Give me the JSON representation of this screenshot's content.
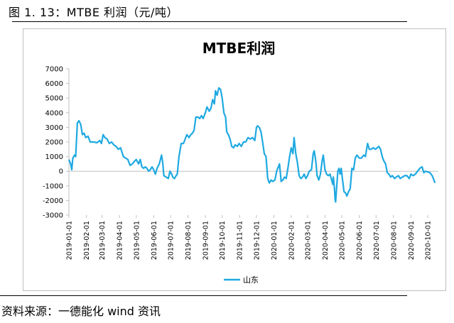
{
  "caption": "图 1. 13：MTBE 利润（元/吨）",
  "source": "资料来源：一德能化 wind 资讯",
  "chart_data": {
    "type": "line",
    "title": "MTBE利润",
    "xlabel": "",
    "ylabel": "",
    "ylim": [
      -3000,
      7000
    ],
    "yticks": [
      -3000,
      -2000,
      -1000,
      0,
      1000,
      2000,
      3000,
      4000,
      5000,
      6000,
      7000
    ],
    "xlim": [
      "2019-01-01",
      "2020-10-20"
    ],
    "xtick_labels": [
      "2019-01-01",
      "2019-02-01",
      "2019-03-01",
      "2019-04-01",
      "2019-05-01",
      "2019-06-01",
      "2019-07-01",
      "2019-08-01",
      "2019-09-01",
      "2019-10-01",
      "2019-11-01",
      "2019-12-01",
      "2020-01-01",
      "2020-02-01",
      "2020-03-01",
      "2020-04-01",
      "2020-05-01",
      "2020-06-01",
      "2020-07-01",
      "2020-08-01",
      "2020-09-01",
      "2020-10-01"
    ],
    "grid": false,
    "legend_position": "bottom",
    "color": "#1fa9e1",
    "series": [
      {
        "name": "山东",
        "points": [
          [
            "2019-01-01",
            800
          ],
          [
            "2019-01-04",
            500
          ],
          [
            "2019-01-06",
            100
          ],
          [
            "2019-01-08",
            900
          ],
          [
            "2019-01-11",
            1100
          ],
          [
            "2019-01-13",
            1000
          ],
          [
            "2019-01-16",
            3300
          ],
          [
            "2019-01-19",
            3450
          ],
          [
            "2019-01-22",
            3200
          ],
          [
            "2019-01-25",
            2500
          ],
          [
            "2019-01-28",
            2600
          ],
          [
            "2019-01-31",
            2300
          ],
          [
            "2019-02-04",
            2400
          ],
          [
            "2019-02-08",
            2000
          ],
          [
            "2019-02-14",
            2000
          ],
          [
            "2019-02-20",
            1950
          ],
          [
            "2019-02-25",
            2100
          ],
          [
            "2019-02-28",
            1900
          ],
          [
            "2019-03-03",
            2500
          ],
          [
            "2019-03-06",
            2300
          ],
          [
            "2019-03-10",
            2200
          ],
          [
            "2019-03-14",
            1900
          ],
          [
            "2019-03-18",
            2000
          ],
          [
            "2019-03-22",
            1800
          ],
          [
            "2019-03-26",
            1700
          ],
          [
            "2019-03-30",
            1500
          ],
          [
            "2019-04-03",
            1600
          ],
          [
            "2019-04-08",
            1000
          ],
          [
            "2019-04-12",
            900
          ],
          [
            "2019-04-16",
            800
          ],
          [
            "2019-04-20",
            400
          ],
          [
            "2019-04-24",
            500
          ],
          [
            "2019-04-28",
            700
          ],
          [
            "2019-05-01",
            800
          ],
          [
            "2019-05-05",
            500
          ],
          [
            "2019-05-08",
            800
          ],
          [
            "2019-05-11",
            300
          ],
          [
            "2019-05-14",
            200
          ],
          [
            "2019-05-17",
            300
          ],
          [
            "2019-05-20",
            200
          ],
          [
            "2019-05-23",
            0
          ],
          [
            "2019-05-26",
            100
          ],
          [
            "2019-05-29",
            300
          ],
          [
            "2019-06-01",
            100
          ],
          [
            "2019-06-04",
            -200
          ],
          [
            "2019-06-07",
            200
          ],
          [
            "2019-06-11",
            500
          ],
          [
            "2019-06-15",
            1100
          ],
          [
            "2019-06-17",
            600
          ],
          [
            "2019-06-19",
            -300
          ],
          [
            "2019-06-23",
            -400
          ],
          [
            "2019-06-27",
            -500
          ],
          [
            "2019-06-30",
            0
          ],
          [
            "2019-07-03",
            -200
          ],
          [
            "2019-07-05",
            -400
          ],
          [
            "2019-07-08",
            -500
          ],
          [
            "2019-07-11",
            -300
          ],
          [
            "2019-07-13",
            -200
          ],
          [
            "2019-07-16",
            1000
          ],
          [
            "2019-07-20",
            1900
          ],
          [
            "2019-07-24",
            1900
          ],
          [
            "2019-07-27",
            2200
          ],
          [
            "2019-07-30",
            2500
          ],
          [
            "2019-08-03",
            2300
          ],
          [
            "2019-08-06",
            2500
          ],
          [
            "2019-08-09",
            2600
          ],
          [
            "2019-08-12",
            2800
          ],
          [
            "2019-08-15",
            3700
          ],
          [
            "2019-08-19",
            3700
          ],
          [
            "2019-08-22",
            3600
          ],
          [
            "2019-08-25",
            3800
          ],
          [
            "2019-08-28",
            3600
          ],
          [
            "2019-09-01",
            4000
          ],
          [
            "2019-09-04",
            4400
          ],
          [
            "2019-09-08",
            4100
          ],
          [
            "2019-09-11",
            4300
          ],
          [
            "2019-09-14",
            4900
          ],
          [
            "2019-09-17",
            4600
          ],
          [
            "2019-09-19",
            5500
          ],
          [
            "2019-09-22",
            5200
          ],
          [
            "2019-09-25",
            5700
          ],
          [
            "2019-09-28",
            5600
          ],
          [
            "2019-10-01",
            5000
          ],
          [
            "2019-10-04",
            4000
          ],
          [
            "2019-10-07",
            3700
          ],
          [
            "2019-10-09",
            2700
          ],
          [
            "2019-10-12",
            2500
          ],
          [
            "2019-10-15",
            2200
          ],
          [
            "2019-10-18",
            1700
          ],
          [
            "2019-10-21",
            1600
          ],
          [
            "2019-10-24",
            1800
          ],
          [
            "2019-10-28",
            1700
          ],
          [
            "2019-10-31",
            1900
          ],
          [
            "2019-11-04",
            1700
          ],
          [
            "2019-11-08",
            2000
          ],
          [
            "2019-11-12",
            2000
          ],
          [
            "2019-11-16",
            2300
          ],
          [
            "2019-11-20",
            2200
          ],
          [
            "2019-11-24",
            2300
          ],
          [
            "2019-11-28",
            2100
          ],
          [
            "2019-12-01",
            3000
          ],
          [
            "2019-12-03",
            3100
          ],
          [
            "2019-12-06",
            3000
          ],
          [
            "2019-12-09",
            2700
          ],
          [
            "2019-12-12",
            2000
          ],
          [
            "2019-12-15",
            1200
          ],
          [
            "2019-12-18",
            1000
          ],
          [
            "2019-12-21",
            -500
          ],
          [
            "2019-12-24",
            -800
          ],
          [
            "2019-12-27",
            -600
          ],
          [
            "2019-12-30",
            -700
          ],
          [
            "2020-01-03",
            -600
          ],
          [
            "2020-01-06",
            0
          ],
          [
            "2020-01-09",
            300
          ],
          [
            "2020-01-11",
            500
          ],
          [
            "2020-01-14",
            -700
          ],
          [
            "2020-01-17",
            -600
          ],
          [
            "2020-01-20",
            -400
          ],
          [
            "2020-01-23",
            -500
          ],
          [
            "2020-01-26",
            200
          ],
          [
            "2020-01-29",
            1000
          ],
          [
            "2020-02-01",
            1600
          ],
          [
            "2020-02-04",
            1200
          ],
          [
            "2020-02-06",
            2300
          ],
          [
            "2020-02-09",
            1200
          ],
          [
            "2020-02-12",
            600
          ],
          [
            "2020-02-15",
            -300
          ],
          [
            "2020-02-18",
            -500
          ],
          [
            "2020-02-21",
            -400
          ],
          [
            "2020-02-24",
            -200
          ],
          [
            "2020-02-27",
            -500
          ],
          [
            "2020-03-01",
            -300
          ],
          [
            "2020-03-04",
            0
          ],
          [
            "2020-03-08",
            100
          ],
          [
            "2020-03-11",
            1200
          ],
          [
            "2020-03-13",
            1400
          ],
          [
            "2020-03-16",
            600
          ],
          [
            "2020-03-18",
            -300
          ],
          [
            "2020-03-21",
            -600
          ],
          [
            "2020-03-24",
            -200
          ],
          [
            "2020-03-27",
            700
          ],
          [
            "2020-03-29",
            1100
          ],
          [
            "2020-04-01",
            100
          ],
          [
            "2020-04-04",
            -200
          ],
          [
            "2020-04-07",
            -300
          ],
          [
            "2020-04-10",
            -200
          ],
          [
            "2020-04-13",
            -600
          ],
          [
            "2020-04-15",
            -900
          ],
          [
            "2020-04-16",
            -400
          ],
          [
            "2020-04-18",
            -1200
          ],
          [
            "2020-04-19",
            -1900
          ],
          [
            "2020-04-20",
            -2100
          ],
          [
            "2020-04-22",
            -1000
          ],
          [
            "2020-04-24",
            0
          ],
          [
            "2020-04-26",
            200
          ],
          [
            "2020-04-28",
            -200
          ],
          [
            "2020-04-30",
            200
          ],
          [
            "2020-05-02",
            -500
          ],
          [
            "2020-05-05",
            -1400
          ],
          [
            "2020-05-08",
            -1500
          ],
          [
            "2020-05-10",
            -1700
          ],
          [
            "2020-05-13",
            -1400
          ],
          [
            "2020-05-16",
            -1200
          ],
          [
            "2020-05-19",
            200
          ],
          [
            "2020-05-22",
            100
          ],
          [
            "2020-05-25",
            900
          ],
          [
            "2020-05-28",
            1100
          ],
          [
            "2020-06-01",
            900
          ],
          [
            "2020-06-05",
            900
          ],
          [
            "2020-06-09",
            1100
          ],
          [
            "2020-06-12",
            1000
          ],
          [
            "2020-06-16",
            1900
          ],
          [
            "2020-06-19",
            1500
          ],
          [
            "2020-06-22",
            1500
          ],
          [
            "2020-06-26",
            1600
          ],
          [
            "2020-06-30",
            1500
          ],
          [
            "2020-07-03",
            1600
          ],
          [
            "2020-07-06",
            1700
          ],
          [
            "2020-07-09",
            1500
          ],
          [
            "2020-07-12",
            1000
          ],
          [
            "2020-07-15",
            700
          ],
          [
            "2020-07-18",
            500
          ],
          [
            "2020-07-21",
            -100
          ],
          [
            "2020-07-24",
            -200
          ],
          [
            "2020-07-27",
            -400
          ],
          [
            "2020-07-30",
            -300
          ],
          [
            "2020-08-03",
            -500
          ],
          [
            "2020-08-06",
            -400
          ],
          [
            "2020-08-10",
            -300
          ],
          [
            "2020-08-13",
            -500
          ],
          [
            "2020-08-17",
            -400
          ],
          [
            "2020-08-21",
            -300
          ],
          [
            "2020-08-25",
            -300
          ],
          [
            "2020-08-29",
            -500
          ],
          [
            "2020-09-01",
            -200
          ],
          [
            "2020-09-05",
            -300
          ],
          [
            "2020-09-09",
            -200
          ],
          [
            "2020-09-13",
            0
          ],
          [
            "2020-09-17",
            200
          ],
          [
            "2020-09-21",
            300
          ],
          [
            "2020-09-24",
            -100
          ],
          [
            "2020-09-27",
            0
          ],
          [
            "2020-10-01",
            -50
          ],
          [
            "2020-10-05",
            -100
          ],
          [
            "2020-10-09",
            -300
          ],
          [
            "2020-10-14",
            -800
          ]
        ]
      }
    ]
  }
}
